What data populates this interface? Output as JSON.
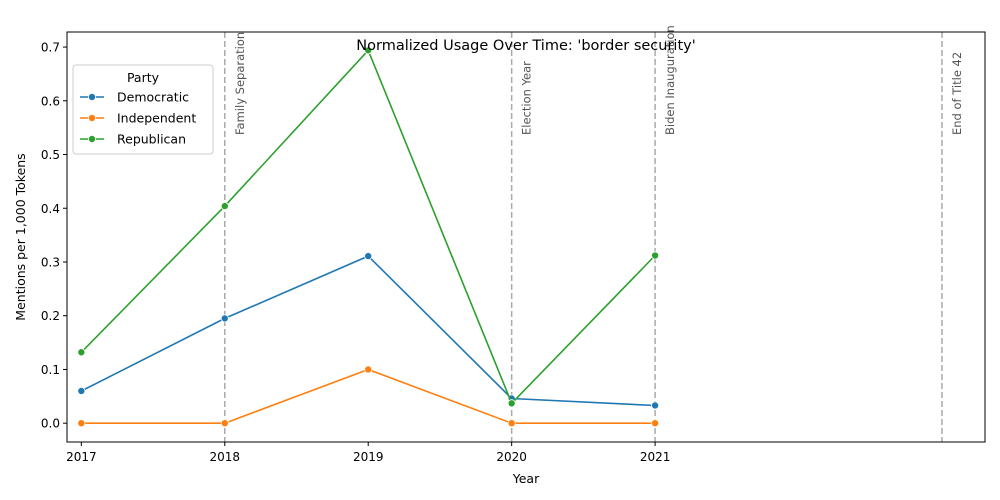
{
  "chart_data": {
    "type": "line",
    "title": "Normalized Usage Over Time: 'border security'",
    "xlabel": "Year",
    "ylabel": "Mentions per 1,000 Tokens",
    "x_ticks": [
      "2017",
      "2018",
      "2019",
      "2020",
      "2021"
    ],
    "xlim": [
      2016.9,
      2023.3
    ],
    "ylim": [
      -0.035,
      0.728
    ],
    "y_ticks": [
      "0.0",
      "0.1",
      "0.2",
      "0.3",
      "0.4",
      "0.5",
      "0.6",
      "0.7"
    ],
    "grid": false,
    "legend": {
      "title": "Party",
      "placement": "top-left"
    },
    "series": [
      {
        "name": "Democratic",
        "color": "#1f77b4",
        "x": [
          2017,
          2018,
          2019,
          2020,
          2021
        ],
        "values": [
          0.06,
          0.195,
          0.311,
          0.046,
          0.033
        ]
      },
      {
        "name": "Independent",
        "color": "#ff7f0e",
        "x": [
          2017,
          2018,
          2019,
          2020,
          2021
        ],
        "values": [
          0.0,
          0.0,
          0.1,
          0.0,
          0.0
        ]
      },
      {
        "name": "Republican",
        "color": "#2ca02c",
        "x": [
          2017,
          2018,
          2019,
          2020,
          2021
        ],
        "values": [
          0.132,
          0.404,
          0.694,
          0.037,
          0.312
        ]
      }
    ],
    "annotations": [
      {
        "x": 2018,
        "label": "Family Separation"
      },
      {
        "x": 2020,
        "label": "Election Year"
      },
      {
        "x": 2021,
        "label": "Biden Inauguration"
      },
      {
        "x": 2023,
        "label": "End of Title 42"
      }
    ],
    "annotation_color": "#aaaaaa"
  }
}
